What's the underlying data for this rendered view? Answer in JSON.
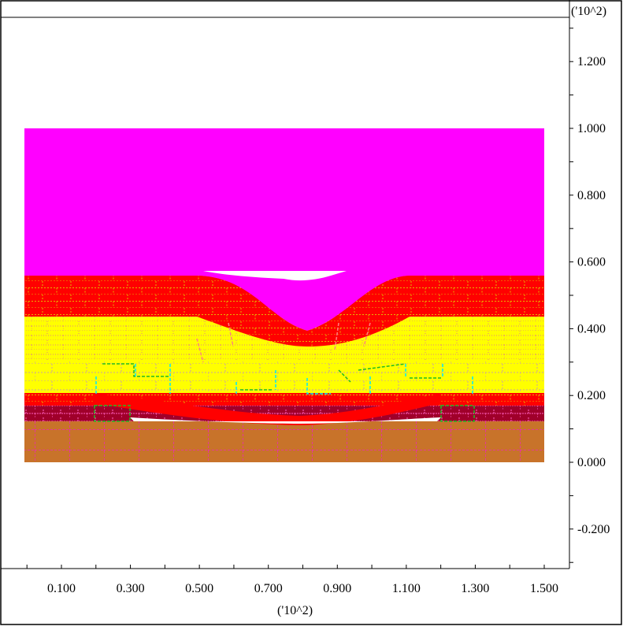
{
  "colors": {
    "background": "#ffffff",
    "frame": "#000000",
    "overburden": "#ff00ff",
    "red_layer": "#ff0000",
    "yellow_layer": "#ffff00",
    "dark_red_seam": "#a0002a",
    "brown_floor": "#c8732a",
    "block_joints": "#e6b400",
    "crack_cyan": "#00e5ff",
    "crack_green": "#22bb22",
    "crack_magenta": "#ff00ff"
  },
  "axes": {
    "x_scale_label": "('10^2)",
    "y_scale_label": "('10^2)",
    "x_ticks": [
      "0.100",
      "0.300",
      "0.500",
      "0.700",
      "0.900",
      "1.100",
      "1.300",
      "1.500"
    ],
    "y_ticks": [
      "1.200",
      "1.000",
      "0.800",
      "0.600",
      "0.400",
      "0.200",
      "0.000",
      "-0.200"
    ],
    "x_range": [
      0,
      1.5
    ],
    "y_range": [
      -0.2,
      1.2
    ]
  }
}
